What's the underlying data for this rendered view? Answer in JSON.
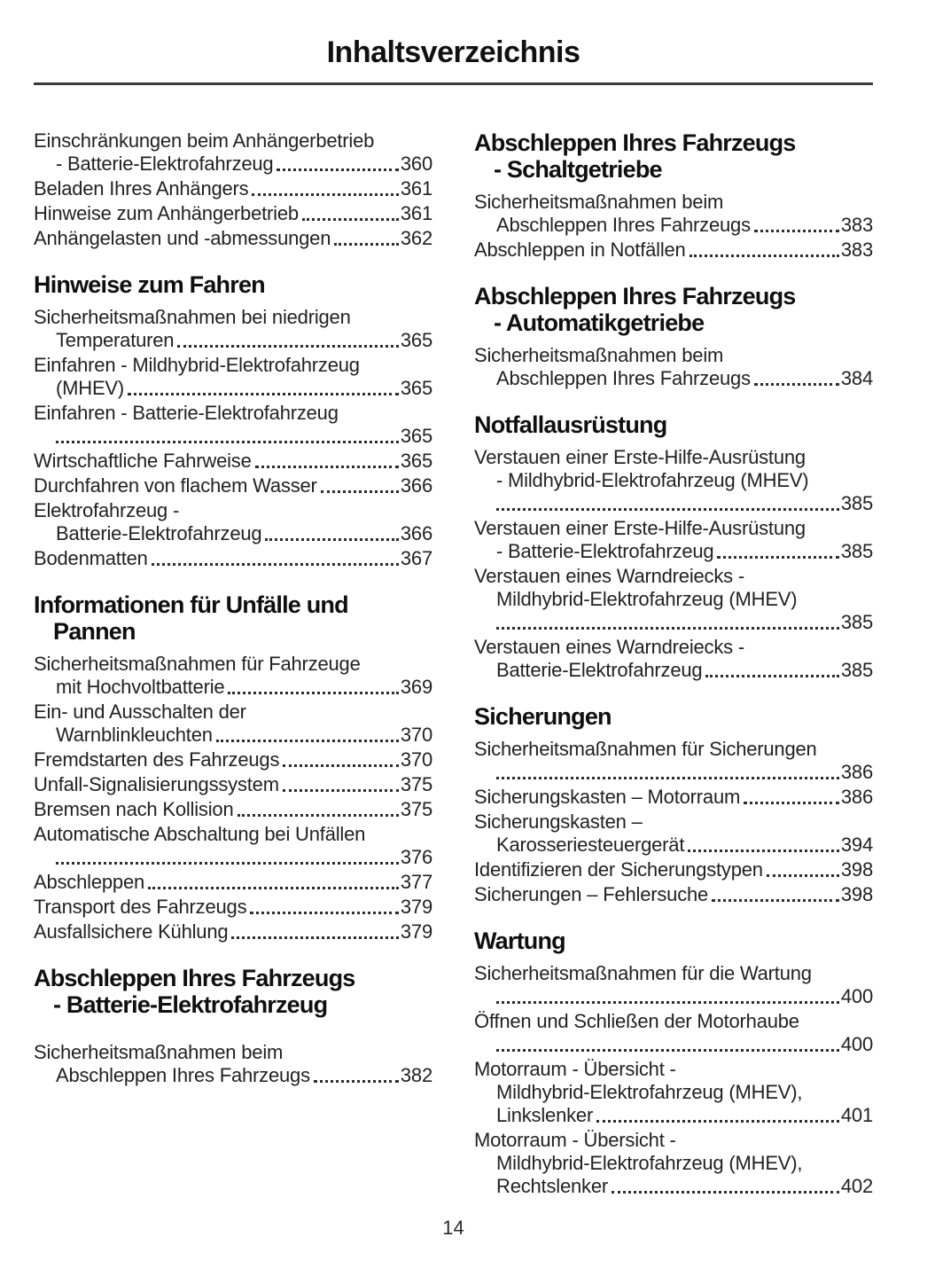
{
  "page": {
    "title": "Inhaltsverzeichnis",
    "footer_page_number": "14"
  },
  "colors": {
    "ink": "#1d1d1d",
    "paper": "#ffffff"
  },
  "columns": {
    "left": [
      {
        "type": "entry",
        "lines": [
          "Einschränkungen beim Anhängerbetrieb",
          "- Batterie-Elektrofahrzeug"
        ],
        "page": "360"
      },
      {
        "type": "entry",
        "lines": [
          "Beladen Ihres Anhängers"
        ],
        "page": "361"
      },
      {
        "type": "entry",
        "lines": [
          "Hinweise zum Anhängerbetrieb"
        ],
        "page": "361"
      },
      {
        "type": "entry",
        "lines": [
          "Anhängelasten und -abmessungen"
        ],
        "page": "362"
      },
      {
        "type": "heading",
        "lines": [
          "Hinweise zum Fahren"
        ]
      },
      {
        "type": "entry",
        "lines": [
          "Sicherheitsmaßnahmen bei niedrigen",
          "Temperaturen"
        ],
        "page": "365"
      },
      {
        "type": "entry",
        "lines": [
          "Einfahren - Mildhybrid-Elektrofahrzeug",
          "(MHEV)"
        ],
        "page": "365"
      },
      {
        "type": "entry",
        "lines": [
          "Einfahren - Batterie-Elektrofahrzeug",
          ""
        ],
        "page": "365"
      },
      {
        "type": "entry",
        "lines": [
          "Wirtschaftliche Fahrweise"
        ],
        "page": "365"
      },
      {
        "type": "entry",
        "lines": [
          "Durchfahren von flachem Wasser"
        ],
        "page": "366"
      },
      {
        "type": "entry",
        "lines": [
          "Elektrofahrzeug -",
          "Batterie-Elektrofahrzeug"
        ],
        "page": "366"
      },
      {
        "type": "entry",
        "lines": [
          "Bodenmatten"
        ],
        "page": "367"
      },
      {
        "type": "heading",
        "lines": [
          "Informationen für Unfälle und",
          "Pannen"
        ]
      },
      {
        "type": "entry",
        "lines": [
          "Sicherheitsmaßnahmen für Fahrzeuge",
          "mit Hochvoltbatterie"
        ],
        "page": "369"
      },
      {
        "type": "entry",
        "lines": [
          "Ein- und Ausschalten der",
          "Warnblinkleuchten"
        ],
        "page": "370"
      },
      {
        "type": "entry",
        "lines": [
          "Fremdstarten des Fahrzeugs"
        ],
        "page": "370"
      },
      {
        "type": "entry",
        "lines": [
          "Unfall-Signalisierungssystem"
        ],
        "page": "375"
      },
      {
        "type": "entry",
        "lines": [
          "Bremsen nach Kollision"
        ],
        "page": "375"
      },
      {
        "type": "entry",
        "lines": [
          "Automatische Abschaltung bei Unfällen",
          ""
        ],
        "page": "376"
      },
      {
        "type": "entry",
        "lines": [
          "Abschleppen"
        ],
        "page": "377"
      },
      {
        "type": "entry",
        "lines": [
          "Transport des Fahrzeugs"
        ],
        "page": "379"
      },
      {
        "type": "entry",
        "lines": [
          "Ausfallsichere Kühlung"
        ],
        "page": "379"
      },
      {
        "type": "heading",
        "lines": [
          "Abschleppen Ihres Fahrzeugs",
          "- Batterie-Elektrofahrzeug"
        ]
      },
      {
        "type": "entry",
        "extra_space_before": true,
        "lines": [
          "Sicherheitsmaßnahmen beim",
          "Abschleppen Ihres Fahrzeugs"
        ],
        "page": "382"
      }
    ],
    "right": [
      {
        "type": "heading",
        "lines": [
          "Abschleppen Ihres Fahrzeugs",
          "- Schaltgetriebe"
        ]
      },
      {
        "type": "entry",
        "lines": [
          "Sicherheitsmaßnahmen beim",
          "Abschleppen Ihres Fahrzeugs"
        ],
        "page": "383"
      },
      {
        "type": "entry",
        "lines": [
          "Abschleppen in Notfällen"
        ],
        "page": "383"
      },
      {
        "type": "heading",
        "lines": [
          "Abschleppen Ihres Fahrzeugs",
          "- Automatikgetriebe"
        ]
      },
      {
        "type": "entry",
        "lines": [
          "Sicherheitsmaßnahmen beim",
          "Abschleppen Ihres Fahrzeugs"
        ],
        "page": "384"
      },
      {
        "type": "heading",
        "lines": [
          "Notfallausrüstung"
        ]
      },
      {
        "type": "entry",
        "lines": [
          "Verstauen einer Erste-Hilfe-Ausrüstung",
          "- Mildhybrid-Elektrofahrzeug (MHEV)",
          ""
        ],
        "page": "385"
      },
      {
        "type": "entry",
        "lines": [
          "Verstauen einer Erste-Hilfe-Ausrüstung",
          "- Batterie-Elektrofahrzeug"
        ],
        "page": "385"
      },
      {
        "type": "entry",
        "lines": [
          "Verstauen eines Warndreiecks -",
          "Mildhybrid-Elektrofahrzeug (MHEV)",
          ""
        ],
        "page": "385"
      },
      {
        "type": "entry",
        "lines": [
          "Verstauen eines Warndreiecks -",
          "Batterie-Elektrofahrzeug"
        ],
        "page": "385"
      },
      {
        "type": "heading",
        "lines": [
          "Sicherungen"
        ]
      },
      {
        "type": "entry",
        "lines": [
          "Sicherheitsmaßnahmen für Sicherungen",
          ""
        ],
        "page": "386"
      },
      {
        "type": "entry",
        "lines": [
          "Sicherungskasten – Motorraum"
        ],
        "page": "386"
      },
      {
        "type": "entry",
        "lines": [
          "Sicherungskasten –",
          "Karosseriesteuergerät"
        ],
        "page": "394"
      },
      {
        "type": "entry",
        "lines": [
          "Identifizieren der Sicherungstypen"
        ],
        "page": "398"
      },
      {
        "type": "entry",
        "lines": [
          "Sicherungen – Fehlersuche"
        ],
        "page": "398"
      },
      {
        "type": "heading",
        "lines": [
          "Wartung"
        ]
      },
      {
        "type": "entry",
        "lines": [
          "Sicherheitsmaßnahmen für die Wartung",
          ""
        ],
        "page": "400"
      },
      {
        "type": "entry",
        "lines": [
          "Öffnen und Schließen der Motorhaube",
          ""
        ],
        "page": "400"
      },
      {
        "type": "entry",
        "lines": [
          "Motorraum - Übersicht -",
          "Mildhybrid-Elektrofahrzeug (MHEV),",
          "Linkslenker"
        ],
        "page": "401"
      },
      {
        "type": "entry",
        "lines": [
          "Motorraum - Übersicht -",
          "Mildhybrid-Elektrofahrzeug (MHEV),",
          "Rechtslenker"
        ],
        "page": "402"
      }
    ]
  }
}
